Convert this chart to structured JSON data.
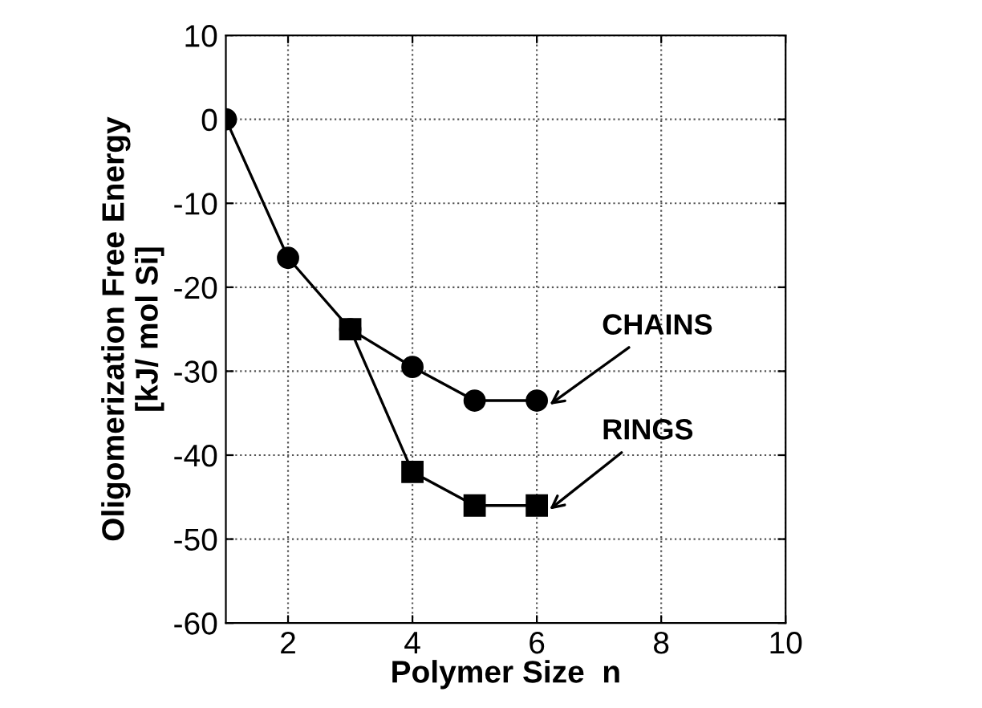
{
  "chart_data": {
    "type": "line",
    "xlabel": "Polymer Size  n",
    "ylabel": "Oligomerization Free Energy\n[kJ/ mol Si]",
    "xlim": [
      1,
      10
    ],
    "xticks": [
      2,
      4,
      6,
      8,
      10
    ],
    "ylim": [
      -60,
      10
    ],
    "yticks": [
      -60,
      -50,
      -40,
      -30,
      -20,
      -10,
      0,
      10
    ],
    "grid": true,
    "legend": false,
    "line_style": "solid",
    "series": [
      {
        "name": "CHAINS",
        "color": "#000000",
        "marker": "circle",
        "x": [
          1,
          2,
          3,
          4,
          5,
          6
        ],
        "values": [
          0,
          -16.5,
          -25,
          -29.5,
          -33.5,
          -33.5
        ]
      },
      {
        "name": "RINGS",
        "color": "#000000",
        "marker": "square",
        "x": [
          3,
          4,
          5,
          6
        ],
        "values": [
          -25,
          -42,
          -46,
          -46
        ]
      }
    ]
  }
}
